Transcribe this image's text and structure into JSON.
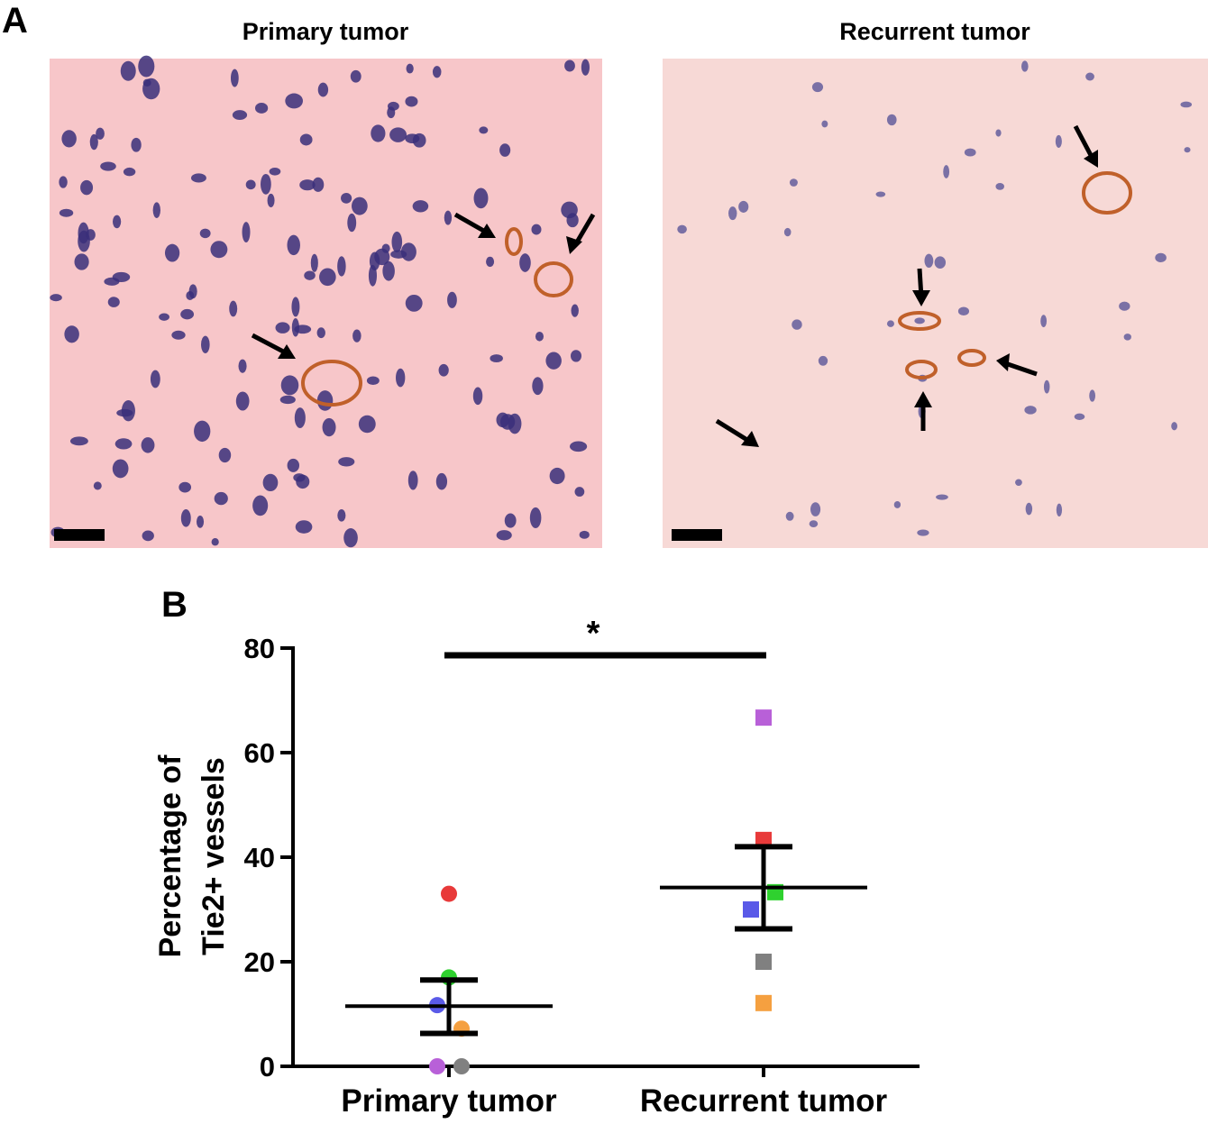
{
  "panel_a": {
    "label": "A",
    "titles": [
      "Primary tumor",
      "Recurrent tumor"
    ]
  },
  "chart_data": {
    "type": "dotplot",
    "panel_label": "B",
    "ylabel_lines": [
      "Percentage of",
      "Tie2+ vessels"
    ],
    "categories": [
      "Primary tumor",
      "Recurrent tumor"
    ],
    "ylim": [
      0,
      80
    ],
    "yticks": [
      0,
      20,
      40,
      60,
      80
    ],
    "point_colors": [
      "#e83a3a",
      "#2fd12f",
      "#5a5ae8",
      "#f5a040",
      "#b860d8",
      "#808080"
    ],
    "groups": [
      {
        "values": [
          33,
          17,
          11.7,
          7.2,
          0,
          0
        ],
        "mean": 11.5,
        "upper": 16.5,
        "lower": 6.3
      },
      {
        "values": [
          43.3,
          33.3,
          30,
          12.1,
          66.7,
          20
        ],
        "mean": 34.2,
        "upper": 42,
        "lower": 26.3
      }
    ],
    "significance": "*"
  }
}
